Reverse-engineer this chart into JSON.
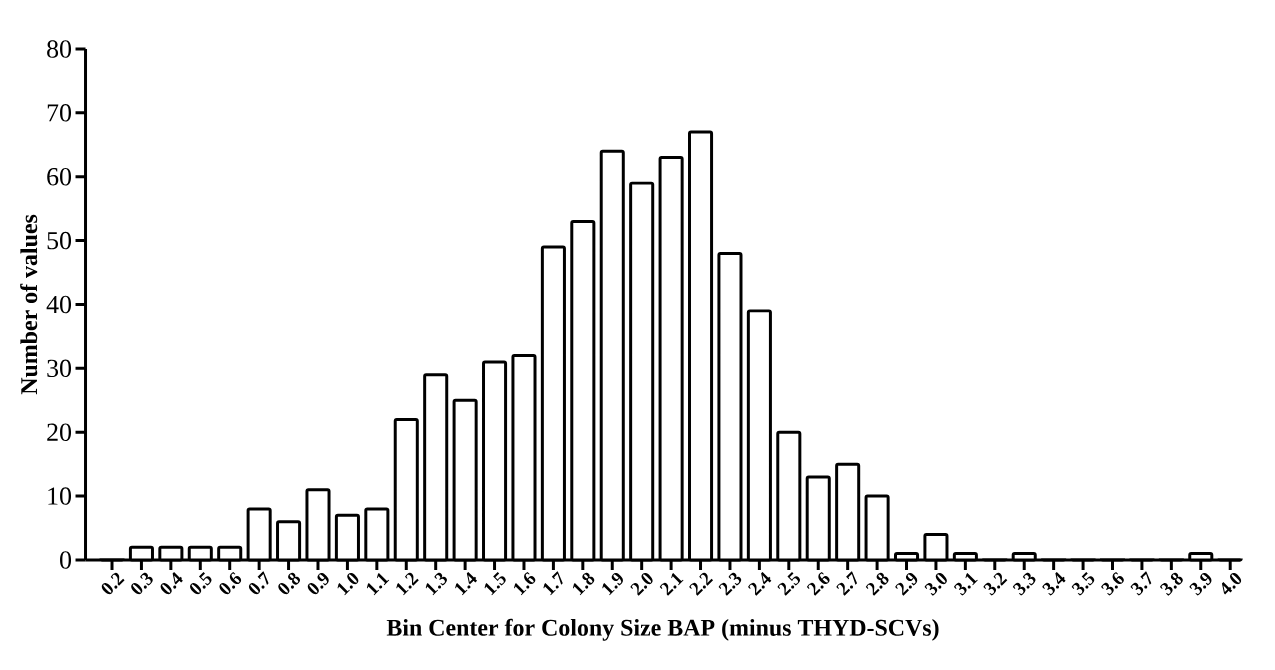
{
  "chart_data": {
    "type": "bar",
    "xlabel": "Bin Center for Colony Size  BAP (minus THYD-SCVs)",
    "ylabel": "Number of values",
    "categories": [
      "0.2",
      "0.3",
      "0.4",
      "0.5",
      "0.6",
      "0.7",
      "0.8",
      "0.9",
      "1.0",
      "1.1",
      "1.2",
      "1.3",
      "1.4",
      "1.5",
      "1.6",
      "1.7",
      "1.8",
      "1.9",
      "2.0",
      "2.1",
      "2.2",
      "2.3",
      "2.4",
      "2.5",
      "2.6",
      "2.7",
      "2.8",
      "2.9",
      "3.0",
      "3.1",
      "3.2",
      "3.3",
      "3.4",
      "3.5",
      "3.6",
      "3.7",
      "3.8",
      "3.9",
      "4.0"
    ],
    "values": [
      0,
      2,
      2,
      2,
      2,
      8,
      6,
      11,
      7,
      8,
      22,
      29,
      25,
      31,
      32,
      49,
      53,
      64,
      59,
      63,
      67,
      48,
      39,
      20,
      13,
      15,
      10,
      1,
      4,
      1,
      0,
      1,
      0,
      0,
      0,
      0,
      0,
      1,
      0
    ],
    "color": "#000000",
    "ylim": [
      0,
      80
    ],
    "yticks": [
      0,
      10,
      20,
      30,
      40,
      50,
      60,
      70,
      80
    ]
  }
}
